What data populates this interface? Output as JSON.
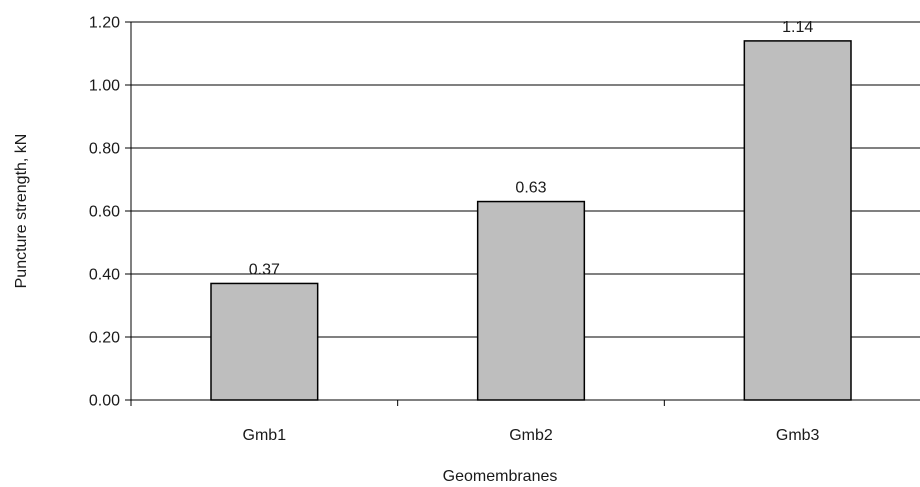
{
  "chart_data": {
    "type": "bar",
    "categories": [
      "Gmb1",
      "Gmb2",
      "Gmb3"
    ],
    "values": [
      0.37,
      0.63,
      1.14
    ],
    "value_labels": [
      "0.37",
      "0.63",
      "1.14"
    ],
    "xlabel": "Geomembranes",
    "ylabel": "Puncture strength, kN",
    "ylim": [
      0,
      1.2
    ],
    "yticks": [
      0.0,
      0.2,
      0.4,
      0.6,
      0.8,
      1.0,
      1.2
    ],
    "ytick_labels": [
      "0.00",
      "0.20",
      "0.40",
      "0.60",
      "0.80",
      "1.00",
      "1.20"
    ],
    "grid": true,
    "bar_color": "#bebebe",
    "bar_edge_color": "#000000"
  }
}
